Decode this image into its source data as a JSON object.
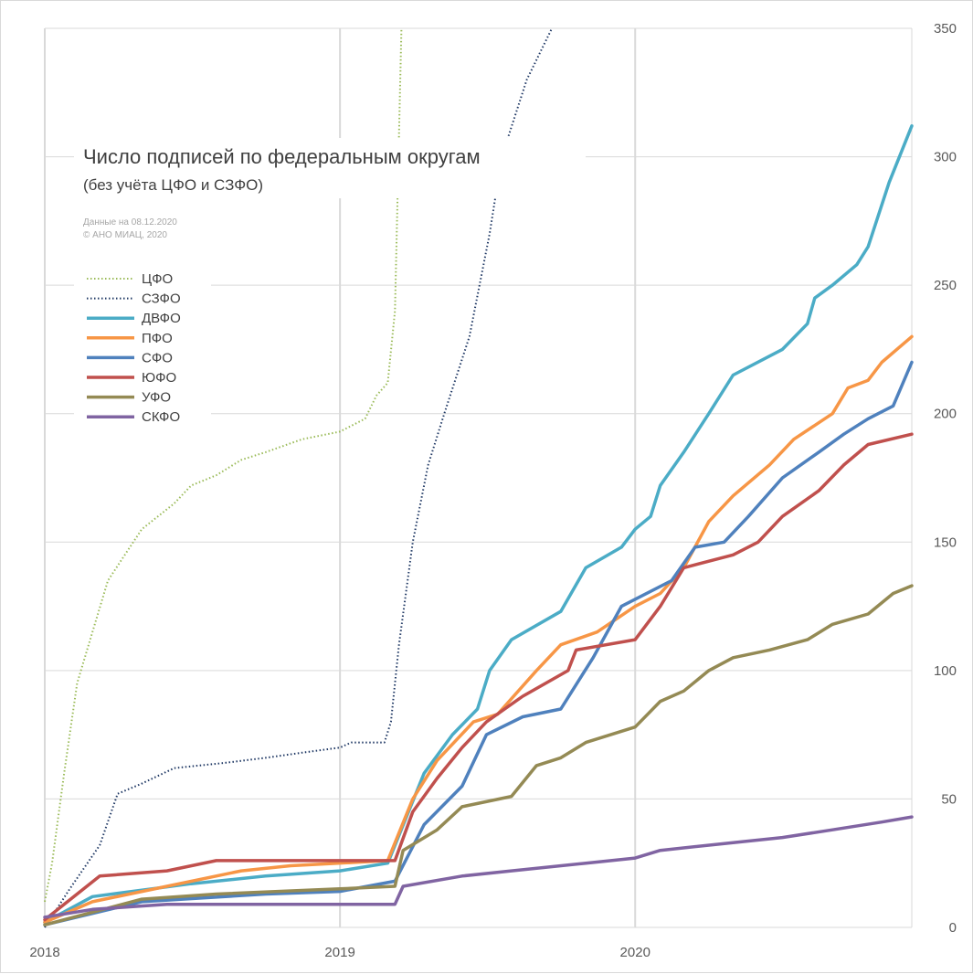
{
  "chart_data": {
    "type": "line",
    "title": "Число подписей по федеральным округам",
    "subtitle": "(без учёта ЦФО и СЗФО)",
    "notes": [
      "Данные на 08.12.2020",
      "© АНО МИАЦ, 2020"
    ],
    "x_type": "date",
    "x_range": [
      "2018-01-01",
      "2020-12-08"
    ],
    "x_ticks": [
      {
        "label": "2018",
        "date": "2018-01-01"
      },
      {
        "label": "2019",
        "date": "2019-01-01"
      },
      {
        "label": "2020",
        "date": "2020-01-01"
      }
    ],
    "ylim": [
      0,
      350
    ],
    "y_ticks": [
      0,
      50,
      100,
      150,
      200,
      250,
      300,
      350
    ],
    "y_axis_side": "right",
    "grid": true,
    "legend": "upper-left",
    "series": [
      {
        "name": "ЦФО",
        "color": "#9bbb59",
        "style": "dotted",
        "points": [
          [
            "2018-01-01",
            10
          ],
          [
            "2018-01-10",
            25
          ],
          [
            "2018-01-25",
            60
          ],
          [
            "2018-02-10",
            95
          ],
          [
            "2018-03-01",
            115
          ],
          [
            "2018-03-20",
            135
          ],
          [
            "2018-04-10",
            145
          ],
          [
            "2018-05-01",
            155
          ],
          [
            "2018-06-10",
            165
          ],
          [
            "2018-07-01",
            172
          ],
          [
            "2018-08-01",
            176
          ],
          [
            "2018-09-01",
            182
          ],
          [
            "2018-10-01",
            185
          ],
          [
            "2018-11-15",
            190
          ],
          [
            "2019-01-01",
            193
          ],
          [
            "2019-02-01",
            198
          ],
          [
            "2019-02-15",
            207
          ],
          [
            "2019-03-01",
            212
          ],
          [
            "2019-03-10",
            240
          ],
          [
            "2019-03-18",
            350
          ]
        ]
      },
      {
        "name": "СЗФО",
        "color": "#1f3864",
        "style": "dotted",
        "points": [
          [
            "2018-01-01",
            0
          ],
          [
            "2018-02-01",
            15
          ],
          [
            "2018-03-10",
            32
          ],
          [
            "2018-04-01",
            52
          ],
          [
            "2018-05-01",
            56
          ],
          [
            "2018-06-10",
            62
          ],
          [
            "2018-07-10",
            63
          ],
          [
            "2018-08-10",
            64
          ],
          [
            "2018-10-01",
            66
          ],
          [
            "2018-11-15",
            68
          ],
          [
            "2019-01-01",
            70
          ],
          [
            "2019-01-15",
            72
          ],
          [
            "2019-02-25",
            72
          ],
          [
            "2019-03-05",
            80
          ],
          [
            "2019-03-15",
            110
          ],
          [
            "2019-04-01",
            150
          ],
          [
            "2019-04-20",
            180
          ],
          [
            "2019-05-10",
            200
          ],
          [
            "2019-06-10",
            230
          ],
          [
            "2019-07-05",
            270
          ],
          [
            "2019-07-20",
            300
          ],
          [
            "2019-08-20",
            330
          ],
          [
            "2019-09-20",
            350
          ]
        ]
      },
      {
        "name": "ДВФО",
        "color": "#4bacc6",
        "style": "solid",
        "points": [
          [
            "2018-01-01",
            2
          ],
          [
            "2018-03-01",
            12
          ],
          [
            "2018-07-01",
            17
          ],
          [
            "2018-10-01",
            20
          ],
          [
            "2019-01-01",
            22
          ],
          [
            "2019-03-01",
            25
          ],
          [
            "2019-04-15",
            60
          ],
          [
            "2019-05-20",
            75
          ],
          [
            "2019-06-20",
            85
          ],
          [
            "2019-07-05",
            100
          ],
          [
            "2019-08-01",
            112
          ],
          [
            "2019-10-01",
            123
          ],
          [
            "2019-11-01",
            140
          ],
          [
            "2019-12-15",
            148
          ],
          [
            "2020-01-01",
            155
          ],
          [
            "2020-01-20",
            160
          ],
          [
            "2020-02-01",
            172
          ],
          [
            "2020-03-01",
            185
          ],
          [
            "2020-04-01",
            200
          ],
          [
            "2020-05-01",
            215
          ],
          [
            "2020-07-01",
            225
          ],
          [
            "2020-08-01",
            235
          ],
          [
            "2020-08-10",
            245
          ],
          [
            "2020-09-01",
            250
          ],
          [
            "2020-10-01",
            258
          ],
          [
            "2020-10-15",
            265
          ],
          [
            "2020-11-10",
            290
          ],
          [
            "2020-12-08",
            312
          ]
        ]
      },
      {
        "name": "ПФО",
        "color": "#f79646",
        "style": "solid",
        "points": [
          [
            "2018-01-01",
            2
          ],
          [
            "2018-03-01",
            10
          ],
          [
            "2018-06-01",
            16
          ],
          [
            "2018-09-01",
            22
          ],
          [
            "2018-11-01",
            24
          ],
          [
            "2019-03-01",
            26
          ],
          [
            "2019-04-01",
            50
          ],
          [
            "2019-05-01",
            65
          ],
          [
            "2019-06-15",
            80
          ],
          [
            "2019-07-15",
            83
          ],
          [
            "2019-09-01",
            100
          ],
          [
            "2019-10-01",
            110
          ],
          [
            "2019-11-15",
            115
          ],
          [
            "2020-01-01",
            125
          ],
          [
            "2020-02-01",
            130
          ],
          [
            "2020-03-01",
            140
          ],
          [
            "2020-04-01",
            158
          ],
          [
            "2020-05-01",
            168
          ],
          [
            "2020-06-15",
            180
          ],
          [
            "2020-07-15",
            190
          ],
          [
            "2020-09-01",
            200
          ],
          [
            "2020-09-20",
            210
          ],
          [
            "2020-10-15",
            213
          ],
          [
            "2020-11-01",
            220
          ],
          [
            "2020-12-08",
            230
          ]
        ]
      },
      {
        "name": "СФО",
        "color": "#4f81bd",
        "style": "solid",
        "points": [
          [
            "2018-01-01",
            1
          ],
          [
            "2018-05-01",
            10
          ],
          [
            "2018-10-01",
            13
          ],
          [
            "2019-01-01",
            14
          ],
          [
            "2019-03-10",
            18
          ],
          [
            "2019-04-15",
            40
          ],
          [
            "2019-06-01",
            55
          ],
          [
            "2019-07-01",
            75
          ],
          [
            "2019-08-15",
            82
          ],
          [
            "2019-10-01",
            85
          ],
          [
            "2019-11-10",
            105
          ],
          [
            "2019-12-15",
            125
          ],
          [
            "2020-02-15",
            135
          ],
          [
            "2020-03-15",
            148
          ],
          [
            "2020-04-20",
            150
          ],
          [
            "2020-05-20",
            160
          ],
          [
            "2020-07-01",
            175
          ],
          [
            "2020-08-15",
            185
          ],
          [
            "2020-09-15",
            192
          ],
          [
            "2020-10-15",
            198
          ],
          [
            "2020-11-15",
            203
          ],
          [
            "2020-12-08",
            220
          ]
        ]
      },
      {
        "name": "ЮФО",
        "color": "#c0504d",
        "style": "solid",
        "points": [
          [
            "2018-01-01",
            3
          ],
          [
            "2018-03-10",
            20
          ],
          [
            "2018-06-01",
            22
          ],
          [
            "2018-08-01",
            26
          ],
          [
            "2018-10-01",
            26
          ],
          [
            "2019-03-10",
            26
          ],
          [
            "2019-04-01",
            45
          ],
          [
            "2019-05-01",
            58
          ],
          [
            "2019-06-01",
            70
          ],
          [
            "2019-07-01",
            80
          ],
          [
            "2019-08-15",
            90
          ],
          [
            "2019-10-10",
            100
          ],
          [
            "2019-10-20",
            108
          ],
          [
            "2020-01-01",
            112
          ],
          [
            "2020-02-01",
            125
          ],
          [
            "2020-03-01",
            140
          ],
          [
            "2020-05-01",
            145
          ],
          [
            "2020-06-01",
            150
          ],
          [
            "2020-07-01",
            160
          ],
          [
            "2020-08-15",
            170
          ],
          [
            "2020-09-15",
            180
          ],
          [
            "2020-10-15",
            188
          ],
          [
            "2020-12-08",
            192
          ]
        ]
      },
      {
        "name": "УФО",
        "color": "#948a54",
        "style": "solid",
        "points": [
          [
            "2018-01-01",
            1
          ],
          [
            "2018-05-01",
            11
          ],
          [
            "2018-08-01",
            13
          ],
          [
            "2019-01-01",
            15
          ],
          [
            "2019-03-10",
            16
          ],
          [
            "2019-03-20",
            30
          ],
          [
            "2019-05-01",
            38
          ],
          [
            "2019-06-01",
            47
          ],
          [
            "2019-08-01",
            51
          ],
          [
            "2019-09-01",
            63
          ],
          [
            "2019-10-01",
            66
          ],
          [
            "2019-11-01",
            72
          ],
          [
            "2020-01-01",
            78
          ],
          [
            "2020-02-01",
            88
          ],
          [
            "2020-03-01",
            92
          ],
          [
            "2020-04-01",
            100
          ],
          [
            "2020-05-01",
            105
          ],
          [
            "2020-06-15",
            108
          ],
          [
            "2020-08-01",
            112
          ],
          [
            "2020-09-01",
            118
          ],
          [
            "2020-10-15",
            122
          ],
          [
            "2020-11-15",
            130
          ],
          [
            "2020-12-08",
            133
          ]
        ]
      },
      {
        "name": "СКФО",
        "color": "#8064a2",
        "style": "solid",
        "points": [
          [
            "2018-01-01",
            4
          ],
          [
            "2018-03-01",
            7
          ],
          [
            "2018-06-01",
            9
          ],
          [
            "2019-03-10",
            9
          ],
          [
            "2019-03-20",
            16
          ],
          [
            "2019-06-01",
            20
          ],
          [
            "2019-08-01",
            22
          ],
          [
            "2019-11-01",
            25
          ],
          [
            "2020-01-01",
            27
          ],
          [
            "2020-02-01",
            30
          ],
          [
            "2020-05-01",
            33
          ],
          [
            "2020-07-01",
            35
          ],
          [
            "2020-09-01",
            38
          ],
          [
            "2020-11-01",
            41
          ],
          [
            "2020-12-08",
            43
          ]
        ]
      }
    ]
  }
}
